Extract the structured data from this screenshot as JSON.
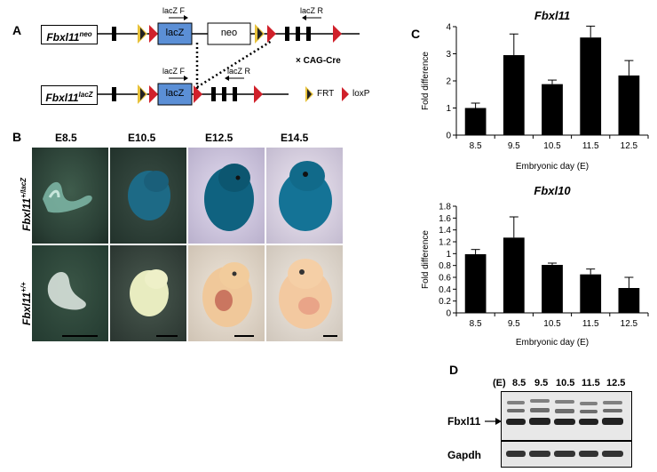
{
  "panelA": {
    "letter": "A",
    "neo_allele": "Fbxl11",
    "neo_sup": "neo",
    "lacz_allele": "Fbxl11",
    "lacz_sup": "lacZ",
    "box_lacz": "lacZ",
    "box_neo": "neo",
    "primer_f": "lacZ F",
    "primer_r": "lacZ R",
    "cre": "× CAG-Cre",
    "legend_frt": "FRT",
    "legend_loxp": "loxP"
  },
  "panelB": {
    "letter": "B",
    "stages": [
      "E8.5",
      "E10.5",
      "E12.5",
      "E14.5"
    ],
    "row1_geno": "Fbxl11",
    "row1_sup": "+/lacZ",
    "row2_geno": "Fbxl11",
    "row2_sup": "+/+"
  },
  "panelD": {
    "letter": "D",
    "e_label": "(E)",
    "days": [
      "8.5",
      "9.5",
      "10.5",
      "11.5",
      "12.5"
    ],
    "band1": "Fbxl11",
    "band2": "Gapdh"
  },
  "chart_data": [
    {
      "type": "bar",
      "panel": "C",
      "title": "Fbxl11",
      "categories": [
        "8.5",
        "9.5",
        "10.5",
        "11.5",
        "12.5"
      ],
      "values": [
        1.0,
        2.95,
        1.88,
        3.6,
        2.2
      ],
      "errors": [
        0.18,
        0.78,
        0.15,
        0.42,
        0.55
      ],
      "xlabel": "Embryonic day (E)",
      "ylabel": "Fold difference",
      "ylim": [
        0,
        4
      ],
      "yticks": [
        0,
        1,
        2,
        3,
        4
      ]
    },
    {
      "type": "bar",
      "title": "Fbxl10",
      "categories": [
        "8.5",
        "9.5",
        "10.5",
        "11.5",
        "12.5"
      ],
      "values": [
        0.99,
        1.27,
        0.81,
        0.65,
        0.42
      ],
      "errors": [
        0.08,
        0.35,
        0.03,
        0.09,
        0.18
      ],
      "xlabel": "Embryonic day (E)",
      "ylabel": "Fold difference",
      "ylim": [
        0,
        1.8
      ],
      "yticks": [
        0,
        0.2,
        0.4,
        0.6,
        0.8,
        1,
        1.2,
        1.4,
        1.6,
        1.8
      ]
    }
  ],
  "colors": {
    "lacz_box": "#5b8fd6",
    "loxp": "#d0202a",
    "frt_outer": "#e8c23a"
  }
}
